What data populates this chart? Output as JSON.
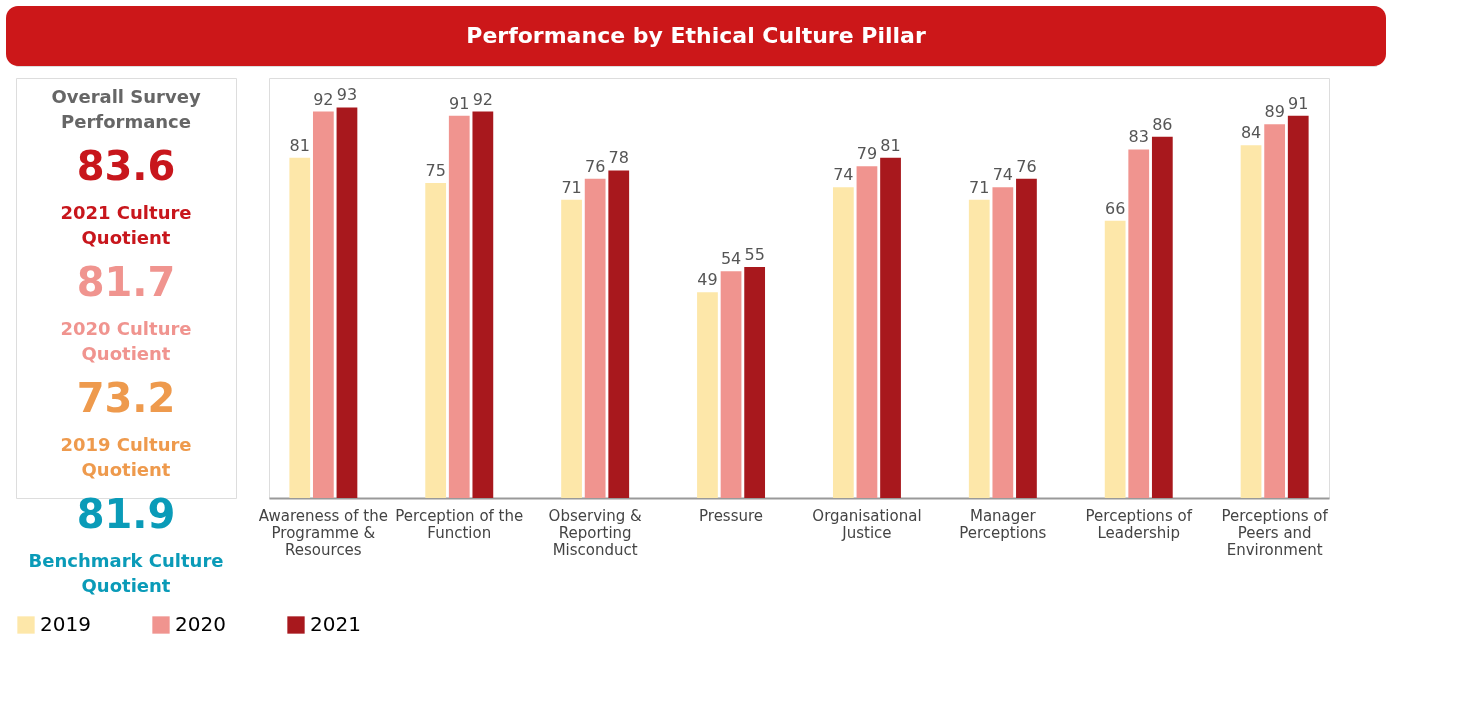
{
  "chart_data": {
    "type": "bar",
    "title": "Performance by Ethical Culture Pillar",
    "categories": [
      "Awareness of the Programme & Resources",
      "Perception of the Function",
      "Observing & Reporting Misconduct",
      "Pressure",
      "Organisational Justice",
      "Manager Perceptions",
      "Perceptions of Leadership",
      "Perceptions of Peers and Environment"
    ],
    "series": [
      {
        "name": "2019",
        "color": "#fde7a9",
        "values": [
          81,
          75,
          71,
          49,
          74,
          71,
          66,
          84
        ]
      },
      {
        "name": "2020",
        "color": "#f0948f",
        "values": [
          92,
          91,
          76,
          54,
          79,
          74,
          83,
          89
        ]
      },
      {
        "name": "2021",
        "color": "#a8181d",
        "values": [
          93,
          92,
          78,
          55,
          81,
          76,
          86,
          91
        ]
      }
    ],
    "data_labels": true,
    "legend": "bottom",
    "tick_labels": "x",
    "annotations": [
      "Overall Survey Performance",
      "83.6",
      "2021 Culture Quotient",
      "81.7",
      "2020 Culture Quotient",
      "73.2",
      "2019 Culture Quotient",
      "81.9",
      "Benchmark Culture Quotient"
    ]
  }
}
